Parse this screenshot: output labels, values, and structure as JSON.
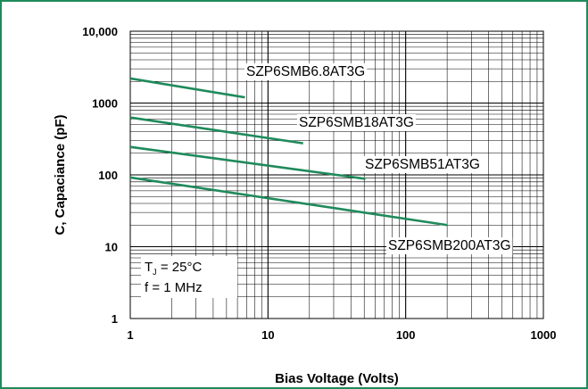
{
  "chart_data": {
    "type": "line",
    "xlabel": "Bias Voltage (Volts)",
    "ylabel": "C, Capaciance (pF)",
    "x_scale": "log",
    "y_scale": "log",
    "xlim": [
      1,
      1000
    ],
    "ylim": [
      1,
      10000
    ],
    "grid": true,
    "x_ticks": [
      {
        "value": 1,
        "label": "1"
      },
      {
        "value": 10,
        "label": "10"
      },
      {
        "value": 100,
        "label": "100"
      },
      {
        "value": 1000,
        "label": "1000"
      }
    ],
    "y_ticks": [
      {
        "value": 1,
        "label": "1"
      },
      {
        "value": 10,
        "label": "10"
      },
      {
        "value": 100,
        "label": "100"
      },
      {
        "value": 1000,
        "label": "1000"
      },
      {
        "value": 10000,
        "label": "10,000"
      }
    ],
    "series": [
      {
        "name": "SZP6SMB6.8AT3G",
        "x": [
          1,
          6.8
        ],
        "y": [
          2200,
          1200
        ]
      },
      {
        "name": "SZP6SMB18AT3G",
        "x": [
          1,
          18
        ],
        "y": [
          630,
          275
        ]
      },
      {
        "name": "SZP6SMB51AT3G",
        "x": [
          1,
          51
        ],
        "y": [
          245,
          88
        ]
      },
      {
        "name": "SZP6SMB200AT3G",
        "x": [
          1,
          200
        ],
        "y": [
          92,
          20
        ]
      }
    ],
    "annotation": {
      "tj_text": "T",
      "tj_sub": "J",
      "tj_value": " = 25°C",
      "freq": "f = 1 MHz"
    },
    "colors": {
      "series": "#1f8a5b",
      "grid": "#000000",
      "frame": "#1f8a5b"
    }
  }
}
